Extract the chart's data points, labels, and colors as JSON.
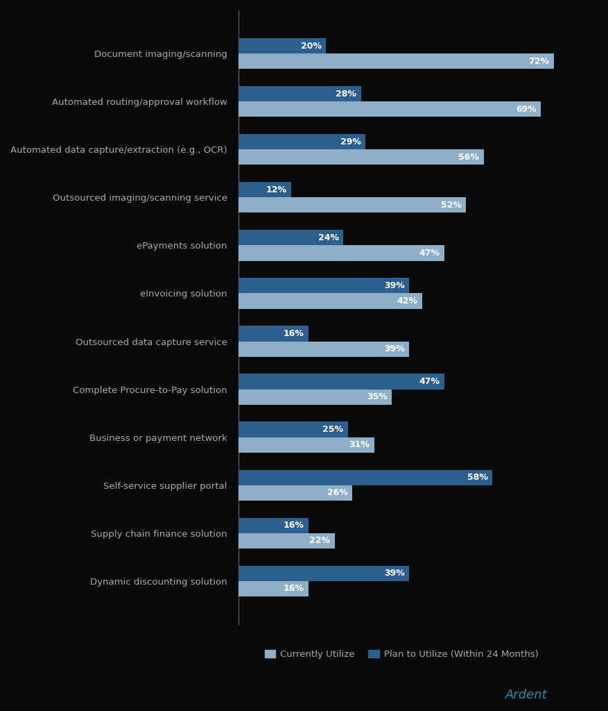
{
  "categories": [
    "Document imaging/scanning",
    "Automated routing/approval workflow",
    "Automated data capture/extraction (e.g., OCR)",
    "Outsourced imaging/scanning service",
    "ePayments solution",
    "eInvoicing solution",
    "Outsourced data capture service",
    "Complete Procure-to-Pay solution",
    "Business or payment network",
    "Self-service supplier portal",
    "Supply chain finance solution",
    "Dynamic discounting solution"
  ],
  "currently_utilize": [
    72,
    69,
    56,
    52,
    47,
    42,
    39,
    35,
    31,
    26,
    22,
    16
  ],
  "plan_to_utilize": [
    20,
    28,
    29,
    12,
    24,
    39,
    16,
    47,
    25,
    58,
    16,
    39
  ],
  "color_currently": "#8fafc8",
  "color_plan": "#2d5f8e",
  "background_color": "#0a0a0a",
  "text_color": "#aaaaaa",
  "label_color": "#ffffff",
  "ardent_color": "#2e8aad",
  "legend_currently": "Currently Utilize",
  "legend_plan": "Plan to Utilize (Within 24 Months)",
  "ardent_text": "Ardent",
  "bar_height": 0.32,
  "xlim": [
    0,
    82
  ]
}
